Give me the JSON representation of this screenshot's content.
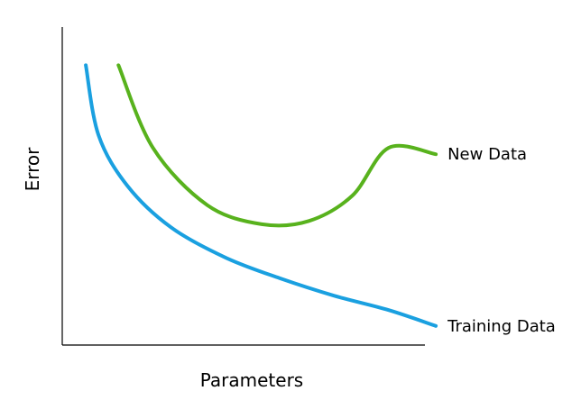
{
  "chart_data": {
    "type": "line",
    "title": "",
    "xlabel": "Parameters",
    "ylabel": "Error",
    "grid": false,
    "xlim": [
      0,
      10
    ],
    "ylim": [
      0,
      10
    ],
    "series": [
      {
        "name": "New Data",
        "color": "#58b21d",
        "points": [
          [
            1.55,
            8.8
          ],
          [
            2.5,
            6.2
          ],
          [
            4.0,
            4.4
          ],
          [
            5.5,
            3.8
          ],
          [
            6.8,
            3.9
          ],
          [
            8.0,
            4.7
          ],
          [
            9.0,
            6.2
          ],
          [
            10.3,
            6.0
          ]
        ]
      },
      {
        "name": "Training Data",
        "color": "#1aa0e0",
        "points": [
          [
            0.65,
            8.8
          ],
          [
            1.0,
            6.6
          ],
          [
            1.8,
            5.0
          ],
          [
            3.0,
            3.7
          ],
          [
            4.5,
            2.75
          ],
          [
            6.0,
            2.1
          ],
          [
            7.5,
            1.55
          ],
          [
            9.0,
            1.1
          ],
          [
            10.3,
            0.6
          ]
        ]
      }
    ]
  }
}
